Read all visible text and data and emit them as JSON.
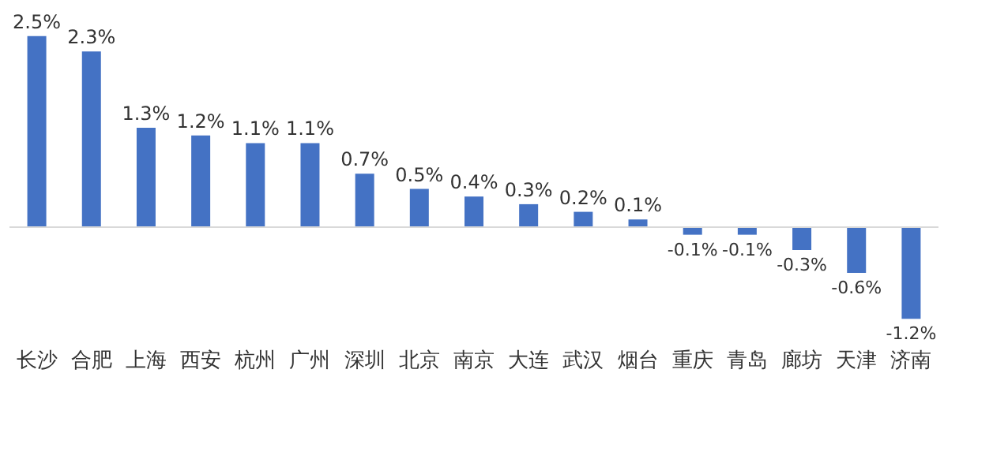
{
  "chart_data": {
    "type": "bar",
    "categories": [
      "长沙",
      "合肥",
      "上海",
      "西安",
      "杭州",
      "广州",
      "深圳",
      "北京",
      "南京",
      "大连",
      "武汉",
      "烟台",
      "重庆",
      "青岛",
      "廊坊",
      "天津",
      "济南"
    ],
    "values": [
      2.5,
      2.3,
      1.3,
      1.2,
      1.1,
      1.1,
      0.7,
      0.5,
      0.4,
      0.3,
      0.2,
      0.1,
      -0.1,
      -0.1,
      -0.3,
      -0.6,
      -1.2
    ],
    "value_labels": [
      "2.5%",
      "2.3%",
      "1.3%",
      "1.2%",
      "1.1%",
      "1.1%",
      "0.7%",
      "0.5%",
      "0.4%",
      "0.3%",
      "0.2%",
      "0.1%",
      "-0.1%",
      "-0.1%",
      "-0.3%",
      "-0.6%",
      "-1.2%"
    ],
    "color": "#4472c4"
  }
}
